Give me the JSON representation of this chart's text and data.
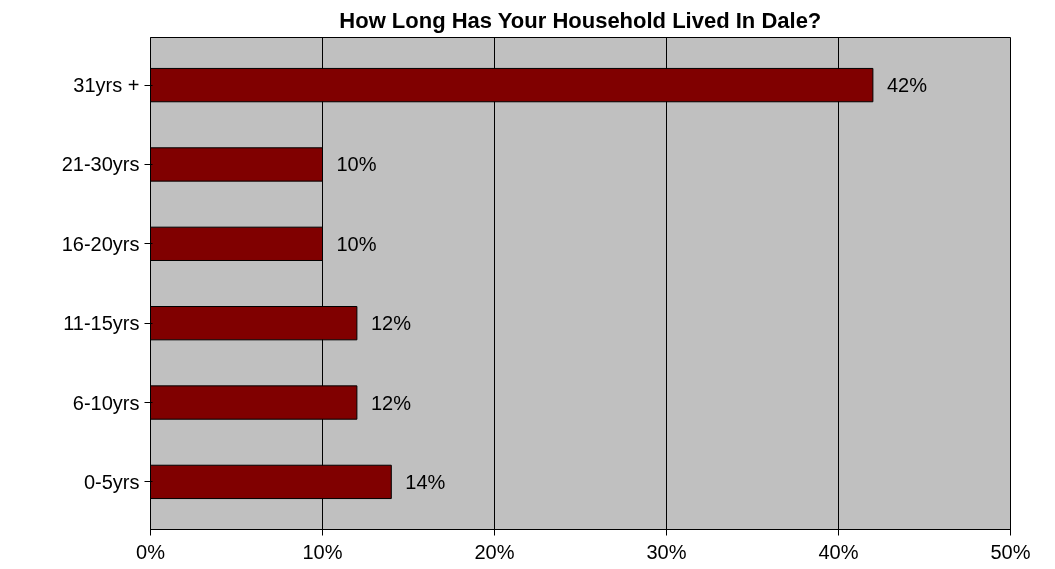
{
  "chart_data": {
    "type": "bar",
    "orientation": "horizontal",
    "title": "How Long Has Your Household Lived In Dale?",
    "categories": [
      "31yrs +",
      "21-30yrs",
      "16-20yrs",
      "11-15yrs",
      "6-10yrs",
      "0-5yrs"
    ],
    "values": [
      42,
      10,
      10,
      12,
      12,
      14
    ],
    "value_labels": [
      "42%",
      "10%",
      "10%",
      "12%",
      "12%",
      "14%"
    ],
    "color": "#800000",
    "xlim": [
      0,
      50
    ],
    "xticks": [
      {
        "value": 0,
        "label": "0%"
      },
      {
        "value": 10,
        "label": "10%"
      },
      {
        "value": 20,
        "label": "20%"
      },
      {
        "value": 30,
        "label": "30%"
      },
      {
        "value": 40,
        "label": "40%"
      },
      {
        "value": 50,
        "label": "50%"
      }
    ],
    "grid": "x"
  }
}
